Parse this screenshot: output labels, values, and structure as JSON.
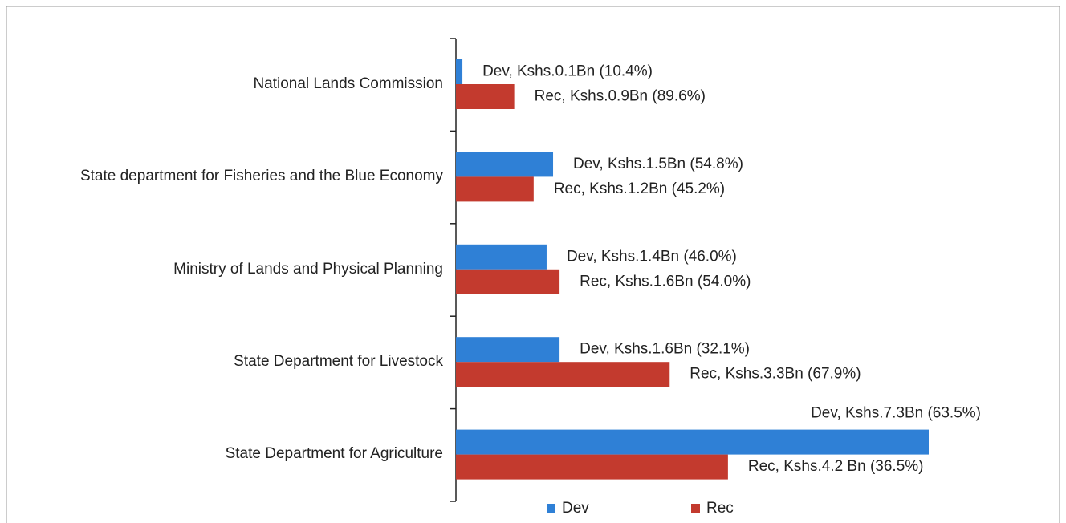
{
  "chart_data": {
    "type": "bar",
    "orientation": "horizontal",
    "categories": [
      "National Lands Commission",
      "State department for Fisheries and the Blue Economy",
      "Ministry of Lands and Physical Planning",
      "State Department for Livestock",
      "State Department for Agriculture"
    ],
    "series": [
      {
        "name": "Dev",
        "color": "#2f80d6",
        "values": [
          0.1,
          1.5,
          1.4,
          1.6,
          7.3
        ],
        "value_labels": [
          "Dev, Kshs.0.1Bn (10.4%)",
          "Dev, Kshs.1.5Bn (54.8%)",
          "Dev, Kshs.1.4Bn (46.0%)",
          "Dev, Kshs.1.6Bn (32.1%)",
          "Dev, Kshs.7.3Bn (63.5%)"
        ]
      },
      {
        "name": "Rec",
        "color": "#c33a2e",
        "values": [
          0.9,
          1.2,
          1.6,
          3.3,
          4.2
        ],
        "value_labels": [
          "Rec, Kshs.0.9Bn (89.6%)",
          "Rec, Kshs.1.2Bn (45.2%)",
          "Rec, Kshs.1.6Bn (54.0%)",
          "Rec, Kshs.3.3Bn (67.9%)",
          "Rec, Kshs.4.2 Bn (36.5%)"
        ]
      }
    ],
    "legend": "bottom"
  }
}
